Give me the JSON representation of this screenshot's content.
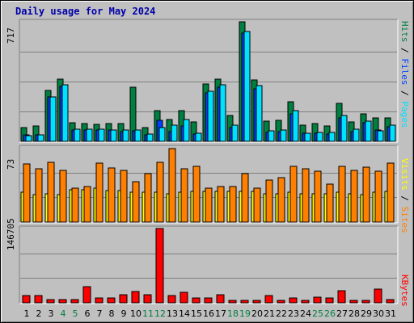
{
  "title": "Daily usage for May 2024",
  "colors": {
    "background": "#c0c0c0",
    "title": "#0000aa",
    "hits": "#008040",
    "files": "#0040ff",
    "pages": "#00e0ff",
    "visits": "#ffff00",
    "sites": "#ff8000",
    "kbytes": "#ff0000",
    "weekend_day_label": "#007f3f"
  },
  "chart_data": [
    {
      "type": "bar",
      "panel": "requests",
      "categories": [
        "1",
        "2",
        "3",
        "4",
        "5",
        "6",
        "7",
        "8",
        "9",
        "10",
        "11",
        "12",
        "13",
        "14",
        "15",
        "16",
        "17",
        "18",
        "19",
        "20",
        "21",
        "22",
        "23",
        "24",
        "25",
        "26",
        "27",
        "28",
        "29",
        "30",
        "31"
      ],
      "weekend_days": [
        "4",
        "5",
        "11",
        "12",
        "18",
        "19",
        "25",
        "26"
      ],
      "y_max_label": "717",
      "ylim": [
        0,
        717
      ],
      "grid": true,
      "series": [
        {
          "name": "Hits",
          "values": [
            80,
            90,
            305,
            375,
            110,
            105,
            100,
            105,
            105,
            325,
            80,
            185,
            130,
            185,
            115,
            345,
            375,
            155,
            717,
            370,
            120,
            125,
            235,
            95,
            105,
            90,
            230,
            115,
            165,
            140,
            140
          ]
        },
        {
          "name": "Files",
          "values": [
            40,
            40,
            265,
            330,
            70,
            70,
            70,
            70,
            60,
            65,
            40,
            125,
            60,
            90,
            45,
            290,
            325,
            80,
            650,
            315,
            55,
            60,
            165,
            50,
            50,
            45,
            140,
            60,
            110,
            70,
            85
          ]
        },
        {
          "name": "Pages",
          "values": [
            35,
            40,
            265,
            340,
            75,
            75,
            75,
            70,
            70,
            70,
            45,
            80,
            95,
            130,
            50,
            300,
            340,
            95,
            660,
            335,
            65,
            70,
            185,
            50,
            55,
            55,
            155,
            75,
            120,
            65,
            95
          ]
        }
      ],
      "legend": [
        "Pages",
        "Files",
        "Hits"
      ],
      "legend_placement": "right"
    },
    {
      "type": "bar",
      "panel": "visitors",
      "categories": [
        "1",
        "2",
        "3",
        "4",
        "5",
        "6",
        "7",
        "8",
        "9",
        "10",
        "11",
        "12",
        "13",
        "14",
        "15",
        "16",
        "17",
        "18",
        "19",
        "20",
        "21",
        "22",
        "23",
        "24",
        "25",
        "26",
        "27",
        "28",
        "29",
        "30",
        "31"
      ],
      "y_max_label": "73",
      "ylim": [
        0,
        73
      ],
      "grid": true,
      "series": [
        {
          "name": "Visits",
          "values": [
            29,
            27,
            28,
            27,
            32,
            32,
            33,
            31,
            31,
            29,
            29,
            29,
            28,
            29,
            30,
            30,
            30,
            30,
            30,
            30,
            28,
            28,
            29,
            28,
            28,
            28,
            29,
            28,
            27,
            29,
            30
          ]
        },
        {
          "name": "Sites",
          "values": [
            57,
            52,
            59,
            51,
            33,
            35,
            58,
            53,
            51,
            40,
            48,
            59,
            72,
            52,
            55,
            33,
            35,
            35,
            48,
            33,
            41,
            44,
            55,
            52,
            50,
            37,
            55,
            51,
            54,
            50,
            58
          ]
        }
      ],
      "legend": [
        "Sites",
        "Visits"
      ],
      "legend_placement": "right"
    },
    {
      "type": "bar",
      "panel": "kbytes",
      "categories": [
        "1",
        "2",
        "3",
        "4",
        "5",
        "6",
        "7",
        "8",
        "9",
        "10",
        "11",
        "12",
        "13",
        "14",
        "15",
        "16",
        "17",
        "18",
        "19",
        "20",
        "21",
        "22",
        "23",
        "24",
        "25",
        "26",
        "27",
        "28",
        "29",
        "30",
        "31"
      ],
      "y_max_label": "146705",
      "ylim": [
        0,
        146705
      ],
      "grid": true,
      "series": [
        {
          "name": "KBytes",
          "values": [
            14500,
            14500,
            7000,
            7000,
            7000,
            32000,
            9000,
            9000,
            16000,
            22000,
            16000,
            146705,
            15000,
            21000,
            9000,
            9000,
            16000,
            4000,
            4000,
            4000,
            14500,
            4000,
            9000,
            4000,
            11500,
            9000,
            24000,
            4000,
            4000,
            27000,
            7000
          ]
        }
      ],
      "legend": [
        "KBytes"
      ],
      "legend_placement": "right"
    }
  ]
}
